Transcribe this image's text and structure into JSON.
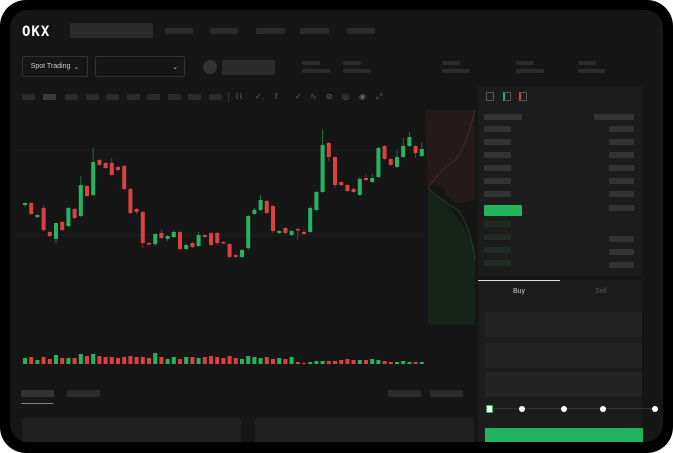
{
  "header": {
    "logo": "OKX"
  },
  "market_bar": {
    "mode_label": "Spot Trading",
    "mode_icon": "chevron-down-icon",
    "pair_select_icon": "chevron-down-icon"
  },
  "chart_toolbar": {
    "icons": [
      "line-icon",
      "indicator-icon",
      "fx-icon",
      "check-icon",
      "wave-icon",
      "pencil-icon",
      "camera-icon",
      "target-icon",
      "fullscreen-icon"
    ]
  },
  "order_book": {
    "view_icons": [
      "book-both-icon",
      "book-bids-icon",
      "book-asks-icon"
    ]
  },
  "trade": {
    "tabs": [
      "Buy",
      "Sell"
    ],
    "active_tab": "Buy",
    "slider_percent": 0
  },
  "colors": {
    "up": "#26b463",
    "down": "#d9423f",
    "background": "#161616",
    "accent": "#22b35e"
  },
  "chart_data": {
    "type": "candlestick",
    "candles_ohlc": [
      [
        95,
        97,
        98,
        93
      ],
      [
        97,
        86,
        98,
        85
      ],
      [
        83,
        85,
        86,
        82
      ],
      [
        92,
        70,
        95,
        68
      ],
      [
        68,
        64,
        69,
        63
      ],
      [
        61,
        77,
        77,
        57
      ],
      [
        78,
        70,
        79,
        69
      ],
      [
        74,
        92,
        93,
        73
      ],
      [
        91,
        82,
        92,
        81
      ],
      [
        84,
        115,
        124,
        83
      ],
      [
        114,
        104,
        115,
        103
      ],
      [
        105,
        138,
        152,
        104
      ],
      [
        140,
        135,
        141,
        134
      ],
      [
        137,
        132,
        138,
        131
      ],
      [
        137,
        125,
        142,
        124
      ],
      [
        133,
        130,
        134,
        129
      ],
      [
        134,
        111,
        135,
        110
      ],
      [
        111,
        87,
        112,
        86
      ],
      [
        91,
        88,
        92,
        86
      ],
      [
        88,
        57,
        89,
        52
      ],
      [
        57,
        56,
        58,
        55
      ],
      [
        56,
        66,
        67,
        54
      ],
      [
        67,
        62,
        70,
        61
      ],
      [
        61,
        64,
        65,
        59
      ],
      [
        63,
        68,
        70,
        62
      ],
      [
        68,
        51,
        69,
        49
      ],
      [
        51,
        55,
        56,
        50
      ],
      [
        57,
        53,
        58,
        52
      ],
      [
        54,
        65,
        68,
        53
      ],
      [
        65,
        63,
        66,
        62
      ],
      [
        67,
        55,
        68,
        54
      ],
      [
        67,
        57,
        68,
        55
      ],
      [
        58,
        57,
        59,
        56
      ],
      [
        56,
        43,
        57,
        42
      ],
      [
        45,
        43,
        46,
        42
      ],
      [
        43,
        50,
        51,
        42
      ],
      [
        52,
        84,
        85,
        50
      ],
      [
        86,
        90,
        92,
        85
      ],
      [
        90,
        100,
        105,
        89
      ],
      [
        99,
        87,
        100,
        86
      ],
      [
        94,
        69,
        95,
        67
      ],
      [
        67,
        69,
        70,
        66
      ],
      [
        72,
        67,
        73,
        66
      ],
      [
        65,
        69,
        70,
        64
      ],
      [
        71,
        70,
        72,
        60
      ],
      [
        68,
        66,
        70,
        65
      ],
      [
        68,
        92,
        94,
        67
      ],
      [
        90,
        108,
        109,
        89
      ],
      [
        108,
        155,
        171,
        107
      ],
      [
        157,
        143,
        158,
        139
      ],
      [
        143,
        115,
        144,
        112
      ],
      [
        118,
        115,
        119,
        114
      ],
      [
        115,
        109,
        116,
        108
      ],
      [
        111,
        108,
        113,
        107
      ],
      [
        105,
        121,
        123,
        104
      ],
      [
        122,
        120,
        126,
        119
      ],
      [
        118,
        122,
        126,
        117
      ],
      [
        123,
        152,
        153,
        122
      ],
      [
        154,
        141,
        155,
        140
      ],
      [
        141,
        135,
        142,
        134
      ],
      [
        133,
        143,
        150,
        132
      ],
      [
        143,
        154,
        162,
        142
      ],
      [
        154,
        163,
        168,
        153
      ],
      [
        154,
        147,
        155,
        142
      ],
      [
        144,
        151,
        158,
        143
      ]
    ],
    "volume": [
      6,
      7,
      4,
      7,
      5,
      9,
      6,
      6,
      6,
      10,
      8,
      10,
      8,
      7,
      7,
      6,
      7,
      8,
      7,
      7,
      6,
      11,
      7,
      5,
      7,
      5,
      7,
      7,
      6,
      7,
      8,
      7,
      6,
      8,
      6,
      5,
      8,
      7,
      6,
      7,
      5,
      6,
      5,
      7,
      2,
      1,
      2,
      3,
      3,
      3,
      3,
      4,
      5,
      4,
      4,
      4,
      5,
      4,
      3,
      2,
      2,
      3,
      2,
      2,
      2
    ]
  }
}
